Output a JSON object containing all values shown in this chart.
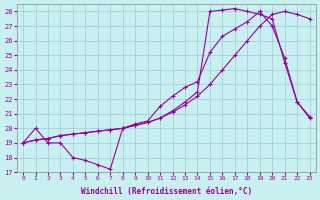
{
  "xlabel": "Windchill (Refroidissement éolien,°C)",
  "background_color": "#c8f0f0",
  "grid_color": "#a0c8d8",
  "line_color": "#990099",
  "xlim": [
    -0.5,
    23.5
  ],
  "ylim": [
    17,
    28.5
  ],
  "xticks": [
    0,
    1,
    2,
    3,
    4,
    5,
    6,
    7,
    8,
    9,
    10,
    11,
    12,
    13,
    14,
    15,
    16,
    17,
    18,
    19,
    20,
    21,
    22,
    23
  ],
  "yticks": [
    17,
    18,
    19,
    20,
    21,
    22,
    23,
    24,
    25,
    26,
    27,
    28
  ],
  "series1_x": [
    0,
    1,
    2,
    3,
    4,
    5,
    6,
    7,
    8,
    9,
    10,
    11,
    12,
    13,
    14,
    15,
    16,
    17,
    18,
    19,
    20,
    21,
    22,
    23
  ],
  "series1_y": [
    19,
    20,
    19,
    19,
    18,
    17.8,
    17.5,
    17.2,
    20,
    20.3,
    20.5,
    21.5,
    22.2,
    22.8,
    23.2,
    25.2,
    26.3,
    26.8,
    27.3,
    28,
    27.0,
    24.8,
    21.8,
    20.8
  ],
  "series2_x": [
    0,
    1,
    2,
    3,
    4,
    5,
    6,
    7,
    8,
    9,
    10,
    11,
    12,
    13,
    14,
    15,
    16,
    17,
    18,
    19,
    20,
    21,
    22,
    23
  ],
  "series2_y": [
    19,
    19.2,
    19.3,
    19.5,
    19.6,
    19.7,
    19.8,
    19.9,
    20.0,
    20.2,
    20.4,
    20.7,
    21.1,
    21.6,
    22.2,
    23.0,
    24.0,
    25.0,
    26.0,
    27.0,
    27.8,
    28.0,
    27.8,
    27.5
  ],
  "series3_x": [
    0,
    1,
    2,
    3,
    4,
    5,
    6,
    7,
    8,
    9,
    10,
    11,
    12,
    13,
    14,
    15,
    16,
    17,
    18,
    19,
    20,
    21,
    22,
    23
  ],
  "series3_y": [
    19,
    19.2,
    19.3,
    19.5,
    19.6,
    19.7,
    19.8,
    19.9,
    20.0,
    20.2,
    20.4,
    20.7,
    21.2,
    21.8,
    22.5,
    28.0,
    28.1,
    28.2,
    28.0,
    27.8,
    27.5,
    24.5,
    21.8,
    20.7
  ],
  "marker": "+"
}
